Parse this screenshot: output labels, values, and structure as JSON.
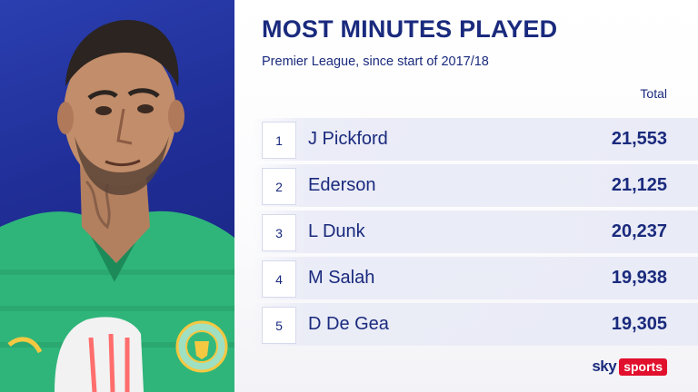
{
  "header": {
    "title": "MOST MINUTES PLAYED",
    "subtitle": "Premier League, since start of 2017/18",
    "column_total": "Total"
  },
  "rows": [
    {
      "rank": "1",
      "name": "J Pickford",
      "total": "21,553"
    },
    {
      "rank": "2",
      "name": "Ederson",
      "total": "21,125"
    },
    {
      "rank": "3",
      "name": "L Dunk",
      "total": "20,237"
    },
    {
      "rank": "4",
      "name": "M Salah",
      "total": "19,938"
    },
    {
      "rank": "5",
      "name": "D De Gea",
      "total": "19,305"
    }
  ],
  "branding": {
    "sky": "sky",
    "sports": "sports"
  },
  "colors": {
    "navy": "#1a2a7d",
    "panel_blue": "#1f2d95",
    "kit_green": "#2fb57a",
    "sky_red": "#e1102d"
  },
  "icons": [
    "player-photo",
    "club-crest-icon",
    "goalkeeper-glove-icon",
    "kit-brand-logo-icon"
  ]
}
